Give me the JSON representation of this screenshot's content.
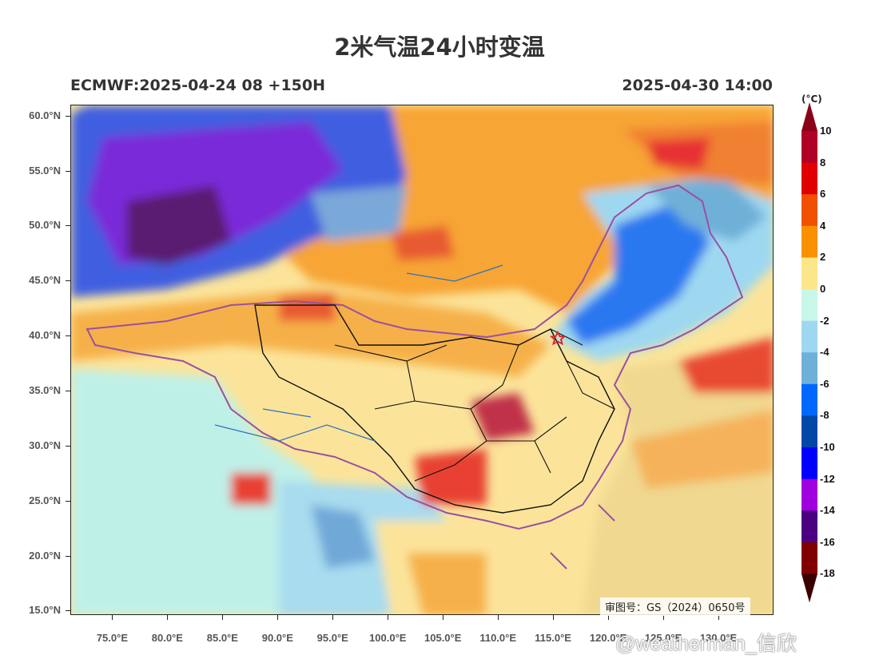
{
  "header": {
    "title": "2米气温24小时变温",
    "model_run": "ECMWF:2025-04-24 08 +150H",
    "valid_time": "2025-04-30 14:00"
  },
  "map": {
    "lat_labels": [
      "60.0°N",
      "55.0°N",
      "50.0°N",
      "45.0°N",
      "40.0°N",
      "35.0°N",
      "30.0°N",
      "25.0°N",
      "20.0°N",
      "15.0°N"
    ],
    "lon_labels": [
      "75.0°E",
      "80.0°E",
      "85.0°E",
      "90.0°E",
      "95.0°E",
      "100.0°E",
      "105.0°E",
      "110.0°E",
      "115.0°E",
      "120.0°E",
      "125.0°E",
      "130.0°E"
    ],
    "lat_range": [
      14.6,
      61.0
    ],
    "lon_range": [
      71.2,
      135.0
    ],
    "marker": {
      "name": "Beijing",
      "lat": 39.9,
      "lon": 116.4,
      "color": "#e02020"
    }
  },
  "colorbar": {
    "unit": "(°C)",
    "labels": [
      "10",
      "8",
      "6",
      "4",
      "2",
      "0",
      "-2",
      "-4",
      "-6",
      "-8",
      "-10",
      "-12",
      "-14",
      "-16",
      "-18"
    ],
    "colors": [
      "#b00028",
      "#e00000",
      "#f05000",
      "#f89000",
      "#fce68a",
      "#c8f6e8",
      "#9ed8f0",
      "#6fb0d8",
      "#0068ff",
      "#0048a8",
      "#0000ff",
      "#a000e0",
      "#4a0080",
      "#800000"
    ],
    "top_arrow": "#8b0018",
    "bottom_arrow": "#3a0000"
  },
  "footer": {
    "approval_number": "审图号：GS（2024）0650号",
    "watermark": "@weatherman_信欣"
  }
}
